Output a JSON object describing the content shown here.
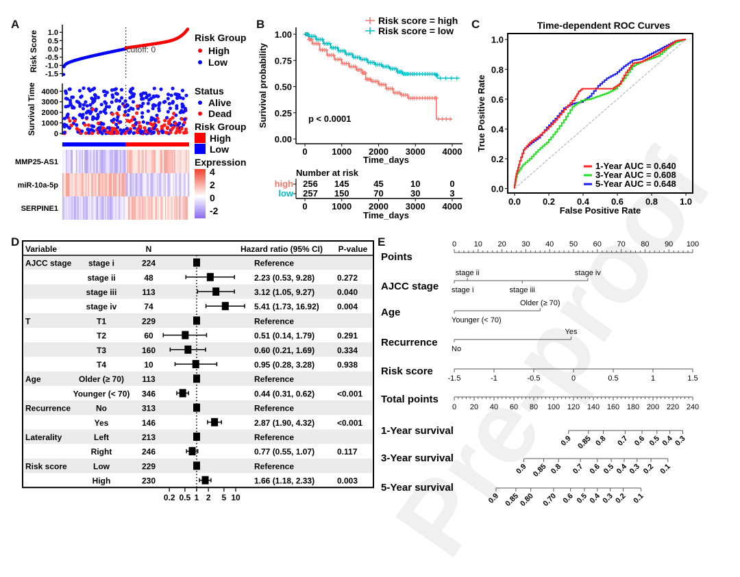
{
  "panels": {
    "A": "A",
    "B": "B",
    "C": "C",
    "D": "D",
    "E": "E"
  },
  "watermark": "Pre-proof",
  "chart_data": [
    {
      "id": "A-risk-score",
      "type": "scatter",
      "ylabel": "Risk Score",
      "yticks": [
        "1.0",
        "0.5",
        "0.0",
        "-0.5",
        "-1.0",
        "-1.5"
      ],
      "yvals": [
        1.0,
        0.5,
        0.0,
        -0.5,
        -1.0,
        -1.5
      ],
      "ylim": [
        -1.6,
        1.3
      ],
      "cutoff_label": "cutoff: 0",
      "cutoff": 0,
      "n_low": 257,
      "n_high": 256,
      "legend_title": "Risk Group",
      "legend": [
        {
          "name": "High",
          "color": "#ff0000"
        },
        {
          "name": "Low",
          "color": "#0000ff"
        }
      ]
    },
    {
      "id": "A-survival-time",
      "type": "scatter",
      "ylabel": "Survival Time",
      "yticks": [
        "4000",
        "3000",
        "2000",
        "1000",
        "0"
      ],
      "yvals": [
        4000,
        3000,
        2000,
        1000,
        0
      ],
      "ylim": [
        0,
        4600
      ],
      "legend_title": "Status",
      "legend": [
        {
          "name": "Alive",
          "color": "#0000ff"
        },
        {
          "name": "Dead",
          "color": "#ff0000"
        }
      ]
    },
    {
      "id": "A-heatmap",
      "type": "heatmap",
      "rows": [
        "MMP25-AS1",
        "miR-10a-5p",
        "SERPINE1"
      ],
      "group_legend_title": "Risk Group",
      "group_legend": [
        {
          "name": "High",
          "color": "#ff0000"
        },
        {
          "name": "Low",
          "color": "#0000ff"
        }
      ],
      "scale_title": "Expression",
      "scale_ticks": [
        "4",
        "2",
        "0",
        "-2"
      ],
      "scale_colors": {
        "high": "#f0402e",
        "mid": "#ffffff",
        "low": "#8a6cf0"
      },
      "row_trend": [
        {
          "low_group_mean": -0.8,
          "high_group_mean": 0.9
        },
        {
          "low_group_mean": 1.0,
          "high_group_mean": -0.7
        },
        {
          "low_group_mean": -0.9,
          "high_group_mean": 0.8
        }
      ]
    },
    {
      "id": "B-km",
      "type": "line",
      "xlabel": "Time_days",
      "ylabel": "Surivival probability",
      "xticks": [
        "0",
        "1000",
        "2000",
        "3000",
        "4000"
      ],
      "xvals": [
        0,
        1000,
        2000,
        3000,
        4000
      ],
      "yticks": [
        "1.00",
        "0.75",
        "0.50",
        "0.25",
        "0.00"
      ],
      "yvals": [
        1.0,
        0.75,
        0.5,
        0.25,
        0.0
      ],
      "xlim": [
        -100,
        4200
      ],
      "ylim": [
        0,
        1.05
      ],
      "pvalue": "p < 0.0001",
      "series": [
        {
          "name": "Risk score = high",
          "color": "#f8766d",
          "x": [
            0,
            100,
            200,
            400,
            600,
            800,
            1000,
            1200,
            1400,
            1550,
            1650,
            1800,
            2000,
            2200,
            2400,
            2600,
            2800,
            3000,
            3300,
            3550,
            3570,
            4000
          ],
          "y": [
            1.0,
            0.95,
            0.91,
            0.85,
            0.8,
            0.76,
            0.72,
            0.69,
            0.66,
            0.63,
            0.57,
            0.55,
            0.52,
            0.48,
            0.44,
            0.42,
            0.39,
            0.39,
            0.39,
            0.39,
            0.19,
            0.19
          ]
        },
        {
          "name": "Risk score = low",
          "color": "#00bfc4",
          "x": [
            0,
            100,
            300,
            500,
            700,
            900,
            1100,
            1300,
            1500,
            1700,
            1900,
            2100,
            2300,
            2500,
            2650,
            2800,
            3000,
            3300,
            3550,
            3600,
            4200
          ],
          "y": [
            1.0,
            0.98,
            0.95,
            0.91,
            0.87,
            0.84,
            0.81,
            0.78,
            0.76,
            0.73,
            0.71,
            0.69,
            0.67,
            0.64,
            0.62,
            0.62,
            0.62,
            0.62,
            0.61,
            0.58,
            0.58
          ]
        }
      ],
      "risk_table": {
        "title": "Number at risk",
        "xlabel": "Time_days",
        "rows": [
          {
            "label": "high",
            "color": "#f8766d",
            "values": [
              "256",
              "145",
              "45",
              "10",
              "0"
            ]
          },
          {
            "label": "low",
            "color": "#00bfc4",
            "values": [
              "257",
              "150",
              "70",
              "30",
              "3"
            ]
          }
        ]
      }
    },
    {
      "id": "C-roc",
      "type": "line",
      "title": "Time-dependent ROC Curves",
      "xlabel": "False Positive Rate",
      "ylabel": "True Positive Rate",
      "xticks": [
        "0.0",
        "0.2",
        "0.4",
        "0.6",
        "0.8",
        "1.0"
      ],
      "yticks": [
        "1.0",
        "0.8",
        "0.6",
        "0.4",
        "0.2",
        "0.0"
      ],
      "xlim": [
        -0.04,
        1.04
      ],
      "ylim": [
        -0.03,
        1.04
      ],
      "series": [
        {
          "name": "1-Year AUC = 0.640",
          "color": "#ff2020",
          "x": [
            0,
            0.01,
            0.03,
            0.06,
            0.1,
            0.15,
            0.2,
            0.25,
            0.3,
            0.35,
            0.38,
            0.4,
            0.5,
            0.58,
            0.62,
            0.66,
            0.7,
            0.75,
            0.8,
            0.85,
            0.9,
            0.95,
            1.0
          ],
          "y": [
            0,
            0.08,
            0.16,
            0.26,
            0.31,
            0.35,
            0.4,
            0.46,
            0.53,
            0.59,
            0.65,
            0.67,
            0.67,
            0.67,
            0.7,
            0.78,
            0.84,
            0.85,
            0.88,
            0.91,
            0.95,
            0.99,
            1.0
          ]
        },
        {
          "name": "3-Year AUC = 0.608",
          "color": "#20dd20",
          "x": [
            0,
            0.02,
            0.05,
            0.1,
            0.15,
            0.2,
            0.25,
            0.3,
            0.35,
            0.4,
            0.45,
            0.5,
            0.55,
            0.6,
            0.65,
            0.7,
            0.75,
            0.8,
            0.85,
            0.9,
            0.95,
            1.0
          ],
          "y": [
            0,
            0.1,
            0.15,
            0.2,
            0.26,
            0.31,
            0.38,
            0.46,
            0.55,
            0.59,
            0.6,
            0.62,
            0.64,
            0.67,
            0.74,
            0.82,
            0.85,
            0.87,
            0.89,
            0.94,
            0.98,
            1.0
          ]
        },
        {
          "name": "5-Year AUC = 0.648",
          "color": "#1a1aee",
          "x": [
            0,
            0.01,
            0.03,
            0.06,
            0.1,
            0.15,
            0.2,
            0.25,
            0.3,
            0.35,
            0.4,
            0.45,
            0.5,
            0.55,
            0.6,
            0.65,
            0.7,
            0.75,
            0.8,
            0.85,
            0.9,
            0.95,
            1.0
          ],
          "y": [
            0,
            0.08,
            0.16,
            0.26,
            0.3,
            0.34,
            0.41,
            0.47,
            0.54,
            0.57,
            0.58,
            0.62,
            0.69,
            0.74,
            0.77,
            0.82,
            0.86,
            0.87,
            0.9,
            0.93,
            0.96,
            0.99,
            1.0
          ]
        },
        {
          "name": "reference",
          "color": "#bbbbbb",
          "dashed": true,
          "x": [
            0,
            1
          ],
          "y": [
            0,
            1
          ]
        }
      ]
    },
    {
      "id": "D-forest",
      "type": "table",
      "headers": {
        "variable": "Variable",
        "n": "N",
        "hr": "Hazard ratio (95% CI)",
        "p": "P-value"
      },
      "xaxis_ticks": [
        "0.2",
        "0.5",
        "1",
        "2",
        "5",
        "10"
      ],
      "xaxis_vals": [
        0.2,
        0.5,
        1,
        2,
        5,
        10
      ],
      "rows": [
        {
          "group": "AJCC stage",
          "level": "stage i",
          "n": "224",
          "hr": 1,
          "lo": null,
          "hi": null,
          "text": "Reference",
          "p": ""
        },
        {
          "group": "",
          "level": "stage ii",
          "n": "48",
          "hr": 2.23,
          "lo": 0.53,
          "hi": 9.28,
          "text": "2.23 (0.53, 9.28)",
          "p": "0.272"
        },
        {
          "group": "",
          "level": "stage iii",
          "n": "113",
          "hr": 3.12,
          "lo": 1.05,
          "hi": 9.27,
          "text": "3.12 (1.05, 9.27)",
          "p": "0.040"
        },
        {
          "group": "",
          "level": "stage iv",
          "n": "74",
          "hr": 5.41,
          "lo": 1.73,
          "hi": 16.92,
          "text": "5.41 (1.73, 16.92)",
          "p": "0.004"
        },
        {
          "group": "T",
          "level": "T1",
          "n": "229",
          "hr": 1,
          "lo": null,
          "hi": null,
          "text": "Reference",
          "p": ""
        },
        {
          "group": "",
          "level": "T2",
          "n": "60",
          "hr": 0.51,
          "lo": 0.14,
          "hi": 1.79,
          "text": "0.51 (0.14, 1.79)",
          "p": "0.291"
        },
        {
          "group": "",
          "level": "T3",
          "n": "160",
          "hr": 0.6,
          "lo": 0.21,
          "hi": 1.69,
          "text": "0.60 (0.21, 1.69)",
          "p": "0.334"
        },
        {
          "group": "",
          "level": "T4",
          "n": "10",
          "hr": 0.95,
          "lo": 0.28,
          "hi": 3.28,
          "text": "0.95 (0.28, 3.28)",
          "p": "0.938"
        },
        {
          "group": "Age",
          "level": "Older (≥ 70)",
          "n": "113",
          "hr": 1,
          "lo": null,
          "hi": null,
          "text": "Reference",
          "p": ""
        },
        {
          "group": "",
          "level": "Younger (< 70)",
          "n": "346",
          "hr": 0.44,
          "lo": 0.31,
          "hi": 0.62,
          "text": "0.44 (0.31, 0.62)",
          "p": "<0.001"
        },
        {
          "group": "Recurrence",
          "level": "No",
          "n": "313",
          "hr": 1,
          "lo": null,
          "hi": null,
          "text": "Reference",
          "p": ""
        },
        {
          "group": "",
          "level": "Yes",
          "n": "146",
          "hr": 2.87,
          "lo": 1.9,
          "hi": 4.32,
          "text": "2.87 (1.90, 4.32)",
          "p": "<0.001"
        },
        {
          "group": "Laterality",
          "level": "Left",
          "n": "213",
          "hr": 1,
          "lo": null,
          "hi": null,
          "text": "Reference",
          "p": ""
        },
        {
          "group": "",
          "level": "Right",
          "n": "246",
          "hr": 0.77,
          "lo": 0.55,
          "hi": 1.07,
          "text": "0.77 (0.55, 1.07)",
          "p": "0.117"
        },
        {
          "group": "Risk score",
          "level": "Low",
          "n": "229",
          "hr": 1,
          "lo": null,
          "hi": null,
          "text": "Reference",
          "p": ""
        },
        {
          "group": "",
          "level": "High",
          "n": "230",
          "hr": 1.66,
          "lo": 1.18,
          "hi": 2.33,
          "text": "1.66 (1.18, 2.33)",
          "p": "0.003"
        }
      ]
    },
    {
      "id": "E-nomogram",
      "type": "table",
      "points_scale": {
        "label": "Points",
        "min": 0,
        "max": 100,
        "labels": [
          "0",
          "10",
          "20",
          "30",
          "40",
          "50",
          "60",
          "70",
          "80",
          "90",
          "100"
        ]
      },
      "variables": [
        {
          "label": "AJCC stage",
          "levels": [
            {
              "name": "stage i",
              "points": 0,
              "pos": "below"
            },
            {
              "name": "stage ii",
              "points": 5.5,
              "pos": "above"
            },
            {
              "name": "stage iii",
              "points": 28.5,
              "pos": "below"
            },
            {
              "name": "stage iv",
              "points": 56,
              "pos": "above"
            }
          ]
        },
        {
          "label": "Age",
          "levels": [
            {
              "name": "Younger (< 70)",
              "points": 0,
              "pos": "below"
            },
            {
              "name": "Older (≥ 70)",
              "points": 36,
              "pos": "above"
            }
          ]
        },
        {
          "label": "Recurrence",
          "levels": [
            {
              "name": "No",
              "points": 0,
              "pos": "below"
            },
            {
              "name": "Yes",
              "points": 49,
              "pos": "above"
            }
          ]
        }
      ],
      "risk_score": {
        "label": "Risk score",
        "labels": [
          "-1.5",
          "-1",
          "-0.5",
          "0",
          "0.5",
          "1",
          "1.5"
        ],
        "vals": [
          -1.5,
          -1,
          -0.5,
          0,
          0.5,
          1,
          1.5
        ]
      },
      "total_points": {
        "label": "Total points",
        "min": 0,
        "max": 240,
        "labels": [
          "0",
          "20",
          "40",
          "60",
          "80",
          "100",
          "120",
          "140",
          "160",
          "180",
          "200",
          "220",
          "240"
        ]
      },
      "survival": [
        {
          "label": "1-Year survival",
          "ticks": [
            {
              "v": "0.9",
              "tp": 115
            },
            {
              "v": "0.85",
              "tp": 135
            },
            {
              "v": "0.8",
              "tp": 150
            },
            {
              "v": "0.7",
              "tp": 172
            },
            {
              "v": "0.6",
              "tp": 189
            },
            {
              "v": "0.5",
              "tp": 204
            },
            {
              "v": "0.4",
              "tp": 217
            },
            {
              "v": "0.3",
              "tp": 230
            }
          ]
        },
        {
          "label": "3-Year survival",
          "ticks": [
            {
              "v": "0.9",
              "tp": 70
            },
            {
              "v": "0.85",
              "tp": 90
            },
            {
              "v": "0.8",
              "tp": 105
            },
            {
              "v": "0.7",
              "tp": 127
            },
            {
              "v": "0.6",
              "tp": 144
            },
            {
              "v": "0.5",
              "tp": 158
            },
            {
              "v": "0.4",
              "tp": 171
            },
            {
              "v": "0.3",
              "tp": 184
            },
            {
              "v": "0.2",
              "tp": 198
            },
            {
              "v": "0.1",
              "tp": 215
            }
          ]
        },
        {
          "label": "5-Year survival",
          "ticks": [
            {
              "v": "0.9",
              "tp": 42
            },
            {
              "v": "0.85",
              "tp": 62
            },
            {
              "v": "0.80",
              "tp": 77
            },
            {
              "v": "0.70",
              "tp": 100
            },
            {
              "v": "0.6",
              "tp": 117
            },
            {
              "v": "0.5",
              "tp": 131
            },
            {
              "v": "0.4",
              "tp": 144
            },
            {
              "v": "0.3",
              "tp": 157
            },
            {
              "v": "0.2",
              "tp": 170
            },
            {
              "v": "0.1",
              "tp": 188
            }
          ]
        }
      ]
    }
  ]
}
